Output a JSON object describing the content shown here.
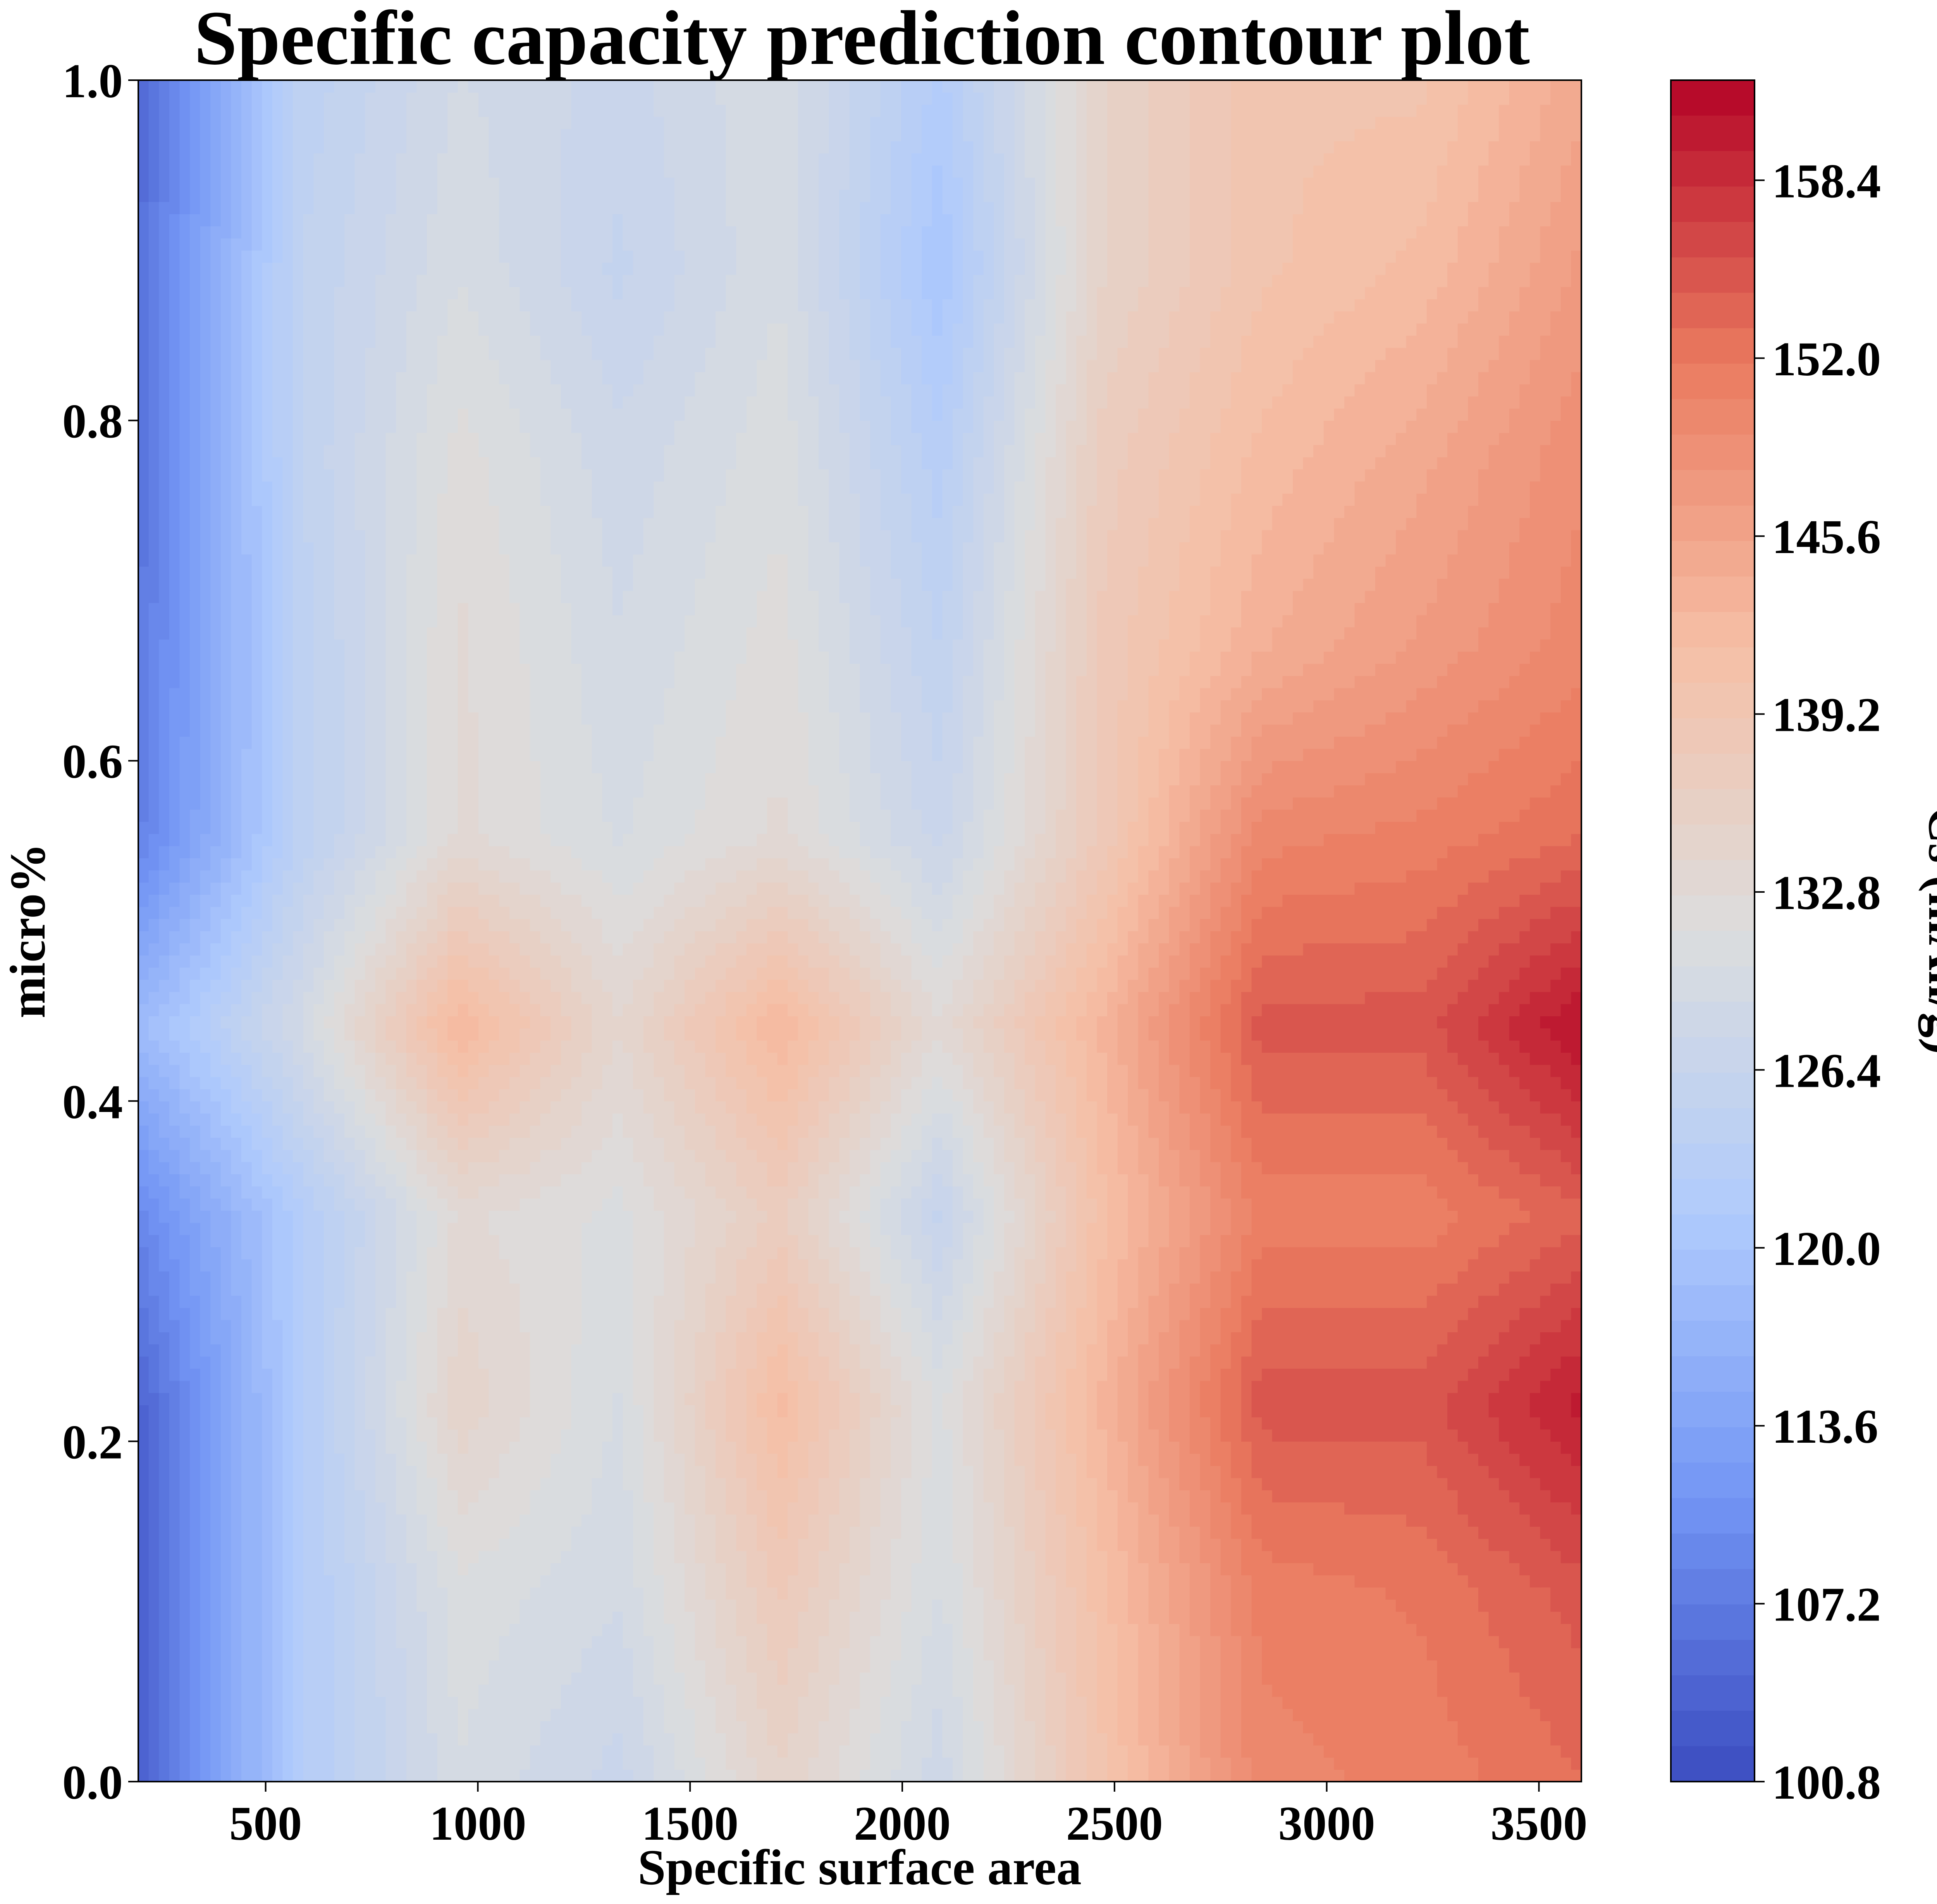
{
  "chart_data": {
    "type": "heatmap",
    "style": "filled-contour",
    "title": "Specific capacity prediction contour plot",
    "xlabel": "Specific surface area",
    "ylabel": "micro%",
    "colorbar_label": "Cs (mAh/g)",
    "colormap": "coolwarm",
    "colormap_stops": [
      "#3b4cc0",
      "#7396f5",
      "#b0cbfc",
      "#dcdddd",
      "#f6bfa6",
      "#ea7b60",
      "#b40426"
    ],
    "xlim": [
      200,
      3600
    ],
    "ylim": [
      0.0,
      1.0
    ],
    "clim": [
      100.8,
      162.0
    ],
    "x_ticks": [
      500,
      1000,
      1500,
      2000,
      2500,
      3000,
      3500
    ],
    "x_tick_labels": [
      "500",
      "1000",
      "1500",
      "2000",
      "2500",
      "3000",
      "3500"
    ],
    "y_ticks": [
      0.0,
      0.2,
      0.4,
      0.6,
      0.8,
      1.0
    ],
    "y_tick_labels": [
      "0.0",
      "0.2",
      "0.4",
      "0.6",
      "0.8",
      "1.0"
    ],
    "colorbar_ticks": [
      100.8,
      107.2,
      113.6,
      120.0,
      126.4,
      132.8,
      139.2,
      145.6,
      152.0,
      158.4
    ],
    "colorbar_tick_labels": [
      "100.8",
      "107.2",
      "113.6",
      "120.0",
      "126.4",
      "132.8",
      "139.2",
      "145.6",
      "152.0",
      "158.4"
    ],
    "grid": false,
    "x": [
      200,
      578,
      956,
      1333,
      1711,
      2089,
      2467,
      2844,
      3222,
      3600
    ],
    "y": [
      0.0,
      0.111,
      0.222,
      0.333,
      0.444,
      0.556,
      0.667,
      0.778,
      0.889,
      1.0
    ],
    "z": [
      [
        104,
        122,
        130,
        127,
        135,
        128,
        140,
        150,
        151,
        153
      ],
      [
        104,
        122,
        131,
        129,
        138,
        130,
        141,
        151,
        152,
        155
      ],
      [
        104,
        122,
        135,
        130,
        142,
        131,
        143,
        155,
        155,
        160
      ],
      [
        109,
        122,
        133,
        131,
        137,
        126,
        141,
        151,
        151,
        154
      ],
      [
        118,
        129,
        143,
        134,
        143,
        133,
        143,
        155,
        155,
        161
      ],
      [
        108,
        124,
        133,
        130,
        133,
        127,
        138,
        150,
        151,
        153
      ],
      [
        107,
        124,
        133,
        129,
        132,
        125,
        138,
        144,
        147,
        150
      ],
      [
        106,
        125,
        132,
        128,
        131,
        123,
        137,
        142,
        145,
        149
      ],
      [
        106,
        125,
        130,
        126,
        130,
        120,
        135,
        140,
        142,
        147
      ],
      [
        104,
        124,
        129,
        127,
        130,
        122,
        135,
        140,
        140,
        145
      ]
    ]
  }
}
